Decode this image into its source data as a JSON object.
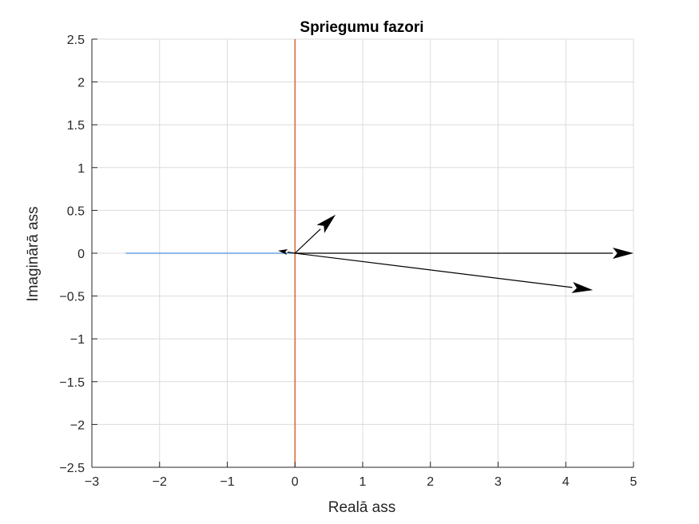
{
  "chart_data": {
    "type": "line",
    "title": "Spriegumu fazori",
    "xlabel": "Realā ass",
    "ylabel": "Imaginārā ass",
    "xlim": [
      -3,
      5
    ],
    "ylim": [
      -2.5,
      2.5
    ],
    "xticks": [
      -3,
      -2,
      -1,
      0,
      1,
      2,
      3,
      4,
      5
    ],
    "xtick_labels": [
      "−3",
      "−2",
      "−1",
      "0",
      "1",
      "2",
      "3",
      "4",
      "5"
    ],
    "yticks": [
      2.5,
      2,
      1.5,
      1,
      0.5,
      0,
      -0.5,
      -1,
      -1.5,
      -2,
      -2.5
    ],
    "ytick_labels": [
      "2.5",
      "2",
      "1.5",
      "1",
      "0.5",
      "0",
      "−0.5",
      "−1",
      "−1.5",
      "−2",
      "−2.5"
    ],
    "grid": true,
    "lines": [
      {
        "x": [
          -2.5,
          0
        ],
        "y": [
          0,
          0
        ],
        "color": "#4a90d9"
      },
      {
        "x": [
          0,
          0
        ],
        "y": [
          -2.5,
          2.5
        ],
        "color": "#d95319"
      }
    ],
    "phasors": [
      {
        "from": [
          0,
          0
        ],
        "to": [
          5,
          0
        ]
      },
      {
        "from": [
          0,
          0
        ],
        "to": [
          4.4,
          -0.43
        ]
      },
      {
        "from": [
          0,
          0
        ],
        "to": [
          0.6,
          0.45
        ]
      },
      {
        "from": [
          0,
          0
        ],
        "to": [
          -0.25,
          0.03
        ]
      }
    ],
    "phasor_color": "#000000"
  }
}
